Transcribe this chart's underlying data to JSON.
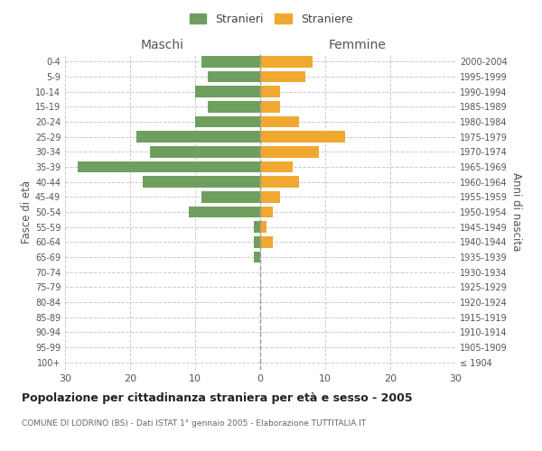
{
  "age_groups": [
    "100+",
    "95-99",
    "90-94",
    "85-89",
    "80-84",
    "75-79",
    "70-74",
    "65-69",
    "60-64",
    "55-59",
    "50-54",
    "45-49",
    "40-44",
    "35-39",
    "30-34",
    "25-29",
    "20-24",
    "15-19",
    "10-14",
    "5-9",
    "0-4"
  ],
  "birth_years": [
    "≤ 1904",
    "1905-1909",
    "1910-1914",
    "1915-1919",
    "1920-1924",
    "1925-1929",
    "1930-1934",
    "1935-1939",
    "1940-1944",
    "1945-1949",
    "1950-1954",
    "1955-1959",
    "1960-1964",
    "1965-1969",
    "1970-1974",
    "1975-1979",
    "1980-1984",
    "1985-1989",
    "1990-1994",
    "1995-1999",
    "2000-2004"
  ],
  "males": [
    0,
    0,
    0,
    0,
    0,
    0,
    0,
    1,
    1,
    1,
    11,
    9,
    18,
    28,
    17,
    19,
    10,
    8,
    10,
    8,
    9
  ],
  "females": [
    0,
    0,
    0,
    0,
    0,
    0,
    0,
    0,
    2,
    1,
    2,
    3,
    6,
    5,
    9,
    13,
    6,
    3,
    3,
    7,
    8
  ],
  "male_color": "#6e9f5e",
  "female_color": "#f0a830",
  "title": "Popolazione per cittadinanza straniera per età e sesso - 2005",
  "subtitle": "COMUNE DI LODRINO (BS) - Dati ISTAT 1° gennaio 2005 - Elaborazione TUTTITALIA.IT",
  "xlabel_left": "Maschi",
  "xlabel_right": "Femmine",
  "ylabel_left": "Fasce di età",
  "ylabel_right": "Anni di nascita",
  "legend_male": "Stranieri",
  "legend_female": "Straniere",
  "xlim": 30,
  "background_color": "#ffffff",
  "grid_color": "#cccccc"
}
